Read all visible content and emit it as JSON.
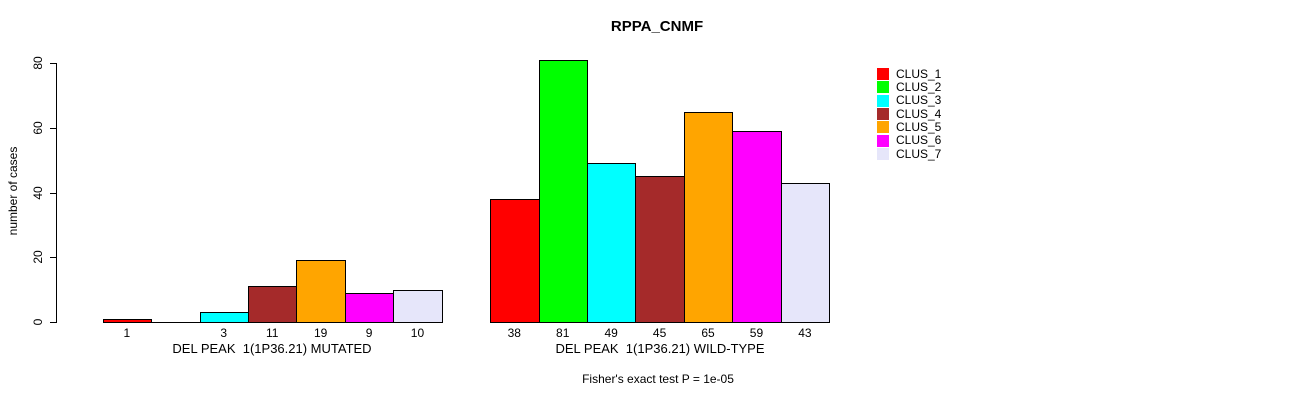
{
  "chart_data": {
    "type": "bar",
    "title": "RPPA_CNMF",
    "ylabel": "number of cases",
    "ylim": [
      0,
      80
    ],
    "yticks": [
      0,
      20,
      40,
      60,
      80
    ],
    "grid": false,
    "legend_position": "right",
    "clusters": [
      {
        "name": "CLUS_1",
        "color": "#FF0000"
      },
      {
        "name": "CLUS_2",
        "color": "#00FF00"
      },
      {
        "name": "CLUS_3",
        "color": "#00FFFF"
      },
      {
        "name": "CLUS_4",
        "color": "#A52A2A"
      },
      {
        "name": "CLUS_5",
        "color": "#FFA500"
      },
      {
        "name": "CLUS_6",
        "color": "#FF00FF"
      },
      {
        "name": "CLUS_7",
        "color": "#E6E6FA"
      }
    ],
    "groups": [
      {
        "label": "DEL PEAK  1(1P36.21) MUTATED",
        "values": [
          1,
          0,
          3,
          11,
          19,
          9,
          10
        ],
        "bar_labels": [
          "1",
          "",
          "3",
          "11",
          "19",
          "9",
          "10"
        ]
      },
      {
        "label": "DEL PEAK  1(1P36.21) WILD-TYPE",
        "values": [
          38,
          81,
          49,
          45,
          65,
          59,
          43
        ],
        "bar_labels": [
          "38",
          "81",
          "49",
          "45",
          "65",
          "59",
          "43"
        ]
      }
    ],
    "footnote": "Fisher's exact test P = 1e-05"
  }
}
